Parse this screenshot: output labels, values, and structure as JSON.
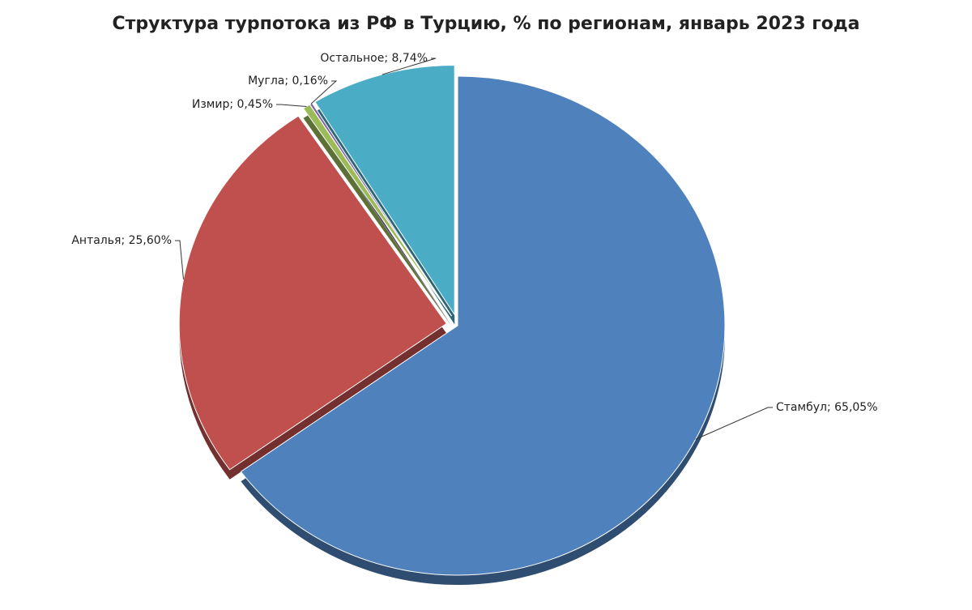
{
  "chart_data": {
    "type": "pie",
    "title": "Структура турпотока из РФ в Турцию, % по регионам, январь 2023 года",
    "categories": [
      "Стамбул",
      "Анталья",
      "Измир",
      "Мугла",
      "Остальное"
    ],
    "values": [
      65.05,
      25.6,
      0.45,
      0.16,
      8.74
    ],
    "value_labels": [
      "65,05%",
      "25,60%",
      "0,45%",
      "0,16%",
      "8,74%"
    ],
    "label_separator": "; ",
    "colors": [
      "#4f81bd",
      "#c0504d",
      "#9bbb59",
      "#8064a2",
      "#4bacc6"
    ]
  }
}
